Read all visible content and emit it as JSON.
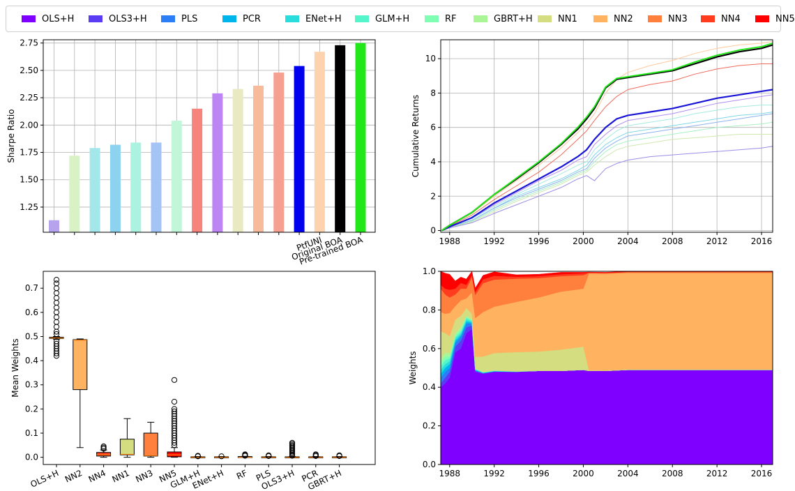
{
  "legend": {
    "items": [
      {
        "label": "OLS+H",
        "color": "#8000ff"
      },
      {
        "label": "OLS3+H",
        "color": "#5a3cf4"
      },
      {
        "label": "PLS",
        "color": "#2c7ef7"
      },
      {
        "label": "PCR",
        "color": "#00b5eb"
      },
      {
        "label": "ENet+H",
        "color": "#2adddd"
      },
      {
        "label": "GLM+H",
        "color": "#54f5ca"
      },
      {
        "label": "RF",
        "color": "#80ffb4"
      },
      {
        "label": "GBRT+H",
        "color": "#aaf596"
      },
      {
        "label": "NN1",
        "color": "#d4dd80"
      },
      {
        "label": "NN2",
        "color": "#ffb360"
      },
      {
        "label": "NN3",
        "color": "#ff7f3c"
      },
      {
        "label": "NN4",
        "color": "#ff3c1e"
      },
      {
        "label": "NN5",
        "color": "#ff0000"
      }
    ]
  },
  "chart_data": [
    {
      "type": "bar",
      "ylabel": "Sharpe Ratio",
      "ylim": [
        1.02,
        2.78
      ],
      "yticks": [
        "1.25",
        "1.50",
        "1.75",
        "2.00",
        "2.25",
        "2.50",
        "2.75"
      ],
      "grid": true,
      "categories": [
        "",
        "",
        "",
        "",
        "",
        "",
        "",
        "",
        "",
        "",
        "",
        "",
        "",
        "PtfUNI",
        "Original BOA",
        "Pre-trained BOA"
      ],
      "values": [
        1.13,
        1.72,
        1.79,
        1.82,
        1.84,
        1.84,
        2.04,
        2.15,
        2.29,
        2.33,
        2.36,
        2.48,
        2.54,
        2.67,
        2.73,
        2.75
      ],
      "colors": [
        "#b5a3ee",
        "#d8f2c5",
        "#a3e7ea",
        "#8dd2ef",
        "#acf2e0",
        "#a3c4f4",
        "#c2f6d8",
        "#f6847d",
        "#bd85f3",
        "#e9eac2",
        "#f7bb9b",
        "#f5a090",
        "#0000ee",
        "#fdd3ad",
        "#000000",
        "#22e81a"
      ]
    },
    {
      "type": "line",
      "ylabel": "Cumulative Returns",
      "xlim": [
        1987.2,
        2017.0
      ],
      "ylim": [
        -0.1,
        11.1
      ],
      "xticks": [
        "1988",
        "1992",
        "1996",
        "2000",
        "2004",
        "2008",
        "2012",
        "2016"
      ],
      "yticks": [
        "0",
        "2",
        "4",
        "6",
        "8",
        "10"
      ],
      "grid": true,
      "x": [
        1987.3,
        1988,
        1990,
        1992,
        1994,
        1996,
        1998,
        1999.5,
        2000.3,
        2001,
        2002,
        2003,
        2004,
        2006,
        2008,
        2010,
        2012,
        2014,
        2016,
        2017
      ],
      "series": [
        {
          "color": "#ffc89c",
          "width": 1,
          "values": [
            0,
            0.3,
            1.0,
            2.0,
            2.9,
            3.8,
            4.8,
            5.7,
            6.2,
            6.8,
            8.0,
            8.8,
            9.2,
            9.6,
            9.9,
            10.3,
            10.6,
            10.8,
            10.9,
            11.0
          ]
        },
        {
          "color": "#f06a5a",
          "width": 1,
          "values": [
            0,
            0.25,
            0.9,
            1.8,
            2.6,
            3.4,
            4.4,
            5.3,
            5.8,
            6.4,
            7.2,
            7.8,
            8.2,
            8.5,
            8.7,
            9.1,
            9.4,
            9.6,
            9.7,
            9.7
          ]
        },
        {
          "color": "#b08cf0",
          "width": 1,
          "values": [
            0,
            0.2,
            0.7,
            1.5,
            2.2,
            2.9,
            3.5,
            4.1,
            4.3,
            5.0,
            5.6,
            6.1,
            6.4,
            6.6,
            6.8,
            7.1,
            7.4,
            7.6,
            7.8,
            7.9
          ]
        },
        {
          "color": "#a3eae0",
          "width": 1,
          "values": [
            0,
            0.2,
            0.7,
            1.4,
            2.1,
            2.7,
            3.3,
            3.8,
            4.0,
            4.7,
            5.3,
            5.8,
            6.1,
            6.3,
            6.5,
            6.8,
            7.0,
            7.2,
            7.3,
            7.3
          ]
        },
        {
          "color": "#7fd7e8",
          "width": 1,
          "values": [
            0,
            0.2,
            0.6,
            1.3,
            2.0,
            2.5,
            3.0,
            3.5,
            3.8,
            4.4,
            5.0,
            5.4,
            5.7,
            5.9,
            6.1,
            6.3,
            6.5,
            6.7,
            6.8,
            6.9
          ]
        },
        {
          "color": "#8cb2ef",
          "width": 1,
          "values": [
            0,
            0.2,
            0.6,
            1.3,
            1.9,
            2.4,
            2.9,
            3.4,
            3.6,
            4.2,
            4.8,
            5.2,
            5.5,
            5.7,
            5.9,
            6.1,
            6.3,
            6.5,
            6.7,
            6.8
          ]
        },
        {
          "color": "#a8f0c4",
          "width": 1,
          "values": [
            0,
            0.18,
            0.55,
            1.2,
            1.8,
            2.3,
            2.8,
            3.3,
            3.5,
            4.0,
            4.6,
            5.0,
            5.2,
            5.4,
            5.6,
            5.8,
            6.0,
            6.1,
            6.2,
            6.3
          ]
        },
        {
          "color": "#cfe8b0",
          "width": 1,
          "values": [
            0,
            0.17,
            0.5,
            1.1,
            1.7,
            2.2,
            2.7,
            3.2,
            3.4,
            3.8,
            4.3,
            4.7,
            4.9,
            5.1,
            5.3,
            5.4,
            5.5,
            5.6,
            5.6,
            5.6
          ]
        },
        {
          "color": "#9a8ce6",
          "width": 1,
          "values": [
            0,
            0.15,
            0.45,
            1.0,
            1.5,
            2.0,
            2.5,
            3.0,
            3.2,
            2.9,
            3.6,
            3.9,
            4.1,
            4.3,
            4.4,
            4.5,
            4.6,
            4.7,
            4.8,
            4.9
          ]
        },
        {
          "color": "#1a14d6",
          "width": 2.2,
          "values": [
            0,
            0.22,
            0.75,
            1.6,
            2.3,
            3.0,
            3.7,
            4.3,
            4.7,
            5.3,
            6.0,
            6.5,
            6.7,
            6.9,
            7.1,
            7.4,
            7.7,
            7.9,
            8.1,
            8.2
          ]
        },
        {
          "color": "#000000",
          "width": 2.2,
          "values": [
            0,
            0.3,
            1.05,
            2.1,
            3.0,
            3.95,
            5.0,
            5.9,
            6.5,
            7.1,
            8.3,
            8.8,
            8.9,
            9.1,
            9.3,
            9.7,
            10.1,
            10.4,
            10.6,
            10.8
          ]
        },
        {
          "color": "#22e81a",
          "width": 2,
          "values": [
            0,
            0.3,
            1.05,
            2.1,
            3.05,
            4.0,
            5.05,
            6.0,
            6.6,
            7.2,
            8.35,
            8.85,
            8.95,
            9.15,
            9.35,
            9.8,
            10.2,
            10.5,
            10.7,
            10.9
          ]
        }
      ]
    },
    {
      "type": "box",
      "ylabel": "Mean Weights",
      "ylim": [
        -0.03,
        0.77
      ],
      "yticks": [
        "0.0",
        "0.1",
        "0.2",
        "0.3",
        "0.4",
        "0.5",
        "0.6",
        "0.7"
      ],
      "categories": [
        "OLS+H",
        "NN2",
        "NN4",
        "NN1",
        "NN3",
        "NN5",
        "GLM+H",
        "ENet+H",
        "RF",
        "PLS",
        "OLS3+H",
        "PCR",
        "GBRT+H"
      ],
      "boxes": [
        {
          "q1": 0.492,
          "median": 0.494,
          "q3": 0.497,
          "whislo": 0.488,
          "whishi": 0.5,
          "fliers": [
            0.42,
            0.43,
            0.44,
            0.45,
            0.46,
            0.47,
            0.48,
            0.51,
            0.52,
            0.54,
            0.56,
            0.58,
            0.6,
            0.62,
            0.64,
            0.66,
            0.68,
            0.7,
            0.72,
            0.735
          ],
          "color": "#8000ff"
        },
        {
          "q1": 0.28,
          "median": 0.485,
          "q3": 0.487,
          "whislo": 0.04,
          "whishi": 0.49,
          "fliers": [],
          "color": "#ffb360"
        },
        {
          "q1": 0.005,
          "median": 0.01,
          "q3": 0.02,
          "whislo": 0.0,
          "whishi": 0.03,
          "fliers": [
            0.035,
            0.04,
            0.045
          ],
          "color": "#ff3c1e"
        },
        {
          "q1": 0.01,
          "median": 0.012,
          "q3": 0.075,
          "whislo": 0.0,
          "whishi": 0.16,
          "fliers": [],
          "color": "#d4dd80"
        },
        {
          "q1": 0.005,
          "median": 0.007,
          "q3": 0.1,
          "whislo": 0.0,
          "whishi": 0.145,
          "fliers": [],
          "color": "#ff7f3c"
        },
        {
          "q1": 0.002,
          "median": 0.01,
          "q3": 0.022,
          "whislo": 0.0,
          "whishi": 0.04,
          "fliers": [
            0.05,
            0.06,
            0.07,
            0.08,
            0.09,
            0.1,
            0.11,
            0.12,
            0.13,
            0.14,
            0.15,
            0.16,
            0.17,
            0.18,
            0.19,
            0.2,
            0.23,
            0.32
          ],
          "color": "#ff0000"
        },
        {
          "q1": 0.0,
          "median": 0.0,
          "q3": 0.002,
          "whislo": 0.0,
          "whishi": 0.003,
          "fliers": [
            0.004,
            0.006
          ],
          "color": "#54f5ca"
        },
        {
          "q1": 0.0,
          "median": 0.0,
          "q3": 0.002,
          "whislo": 0.0,
          "whishi": 0.003,
          "fliers": [
            0.004
          ],
          "color": "#2adddd"
        },
        {
          "q1": 0.0,
          "median": 0.0,
          "q3": 0.003,
          "whislo": 0.0,
          "whishi": 0.004,
          "fliers": [
            0.006,
            0.009,
            0.012
          ],
          "color": "#80ffb4"
        },
        {
          "q1": 0.0,
          "median": 0.0,
          "q3": 0.002,
          "whislo": 0.0,
          "whishi": 0.003,
          "fliers": [
            0.005,
            0.008
          ],
          "color": "#2c7ef7"
        },
        {
          "q1": 0.0,
          "median": 0.0,
          "q3": 0.002,
          "whislo": 0.0,
          "whishi": 0.003,
          "fliers": [
            0.006,
            0.01,
            0.015,
            0.02,
            0.025,
            0.03,
            0.035,
            0.04,
            0.045,
            0.05,
            0.055,
            0.06
          ],
          "color": "#5a3cf4"
        },
        {
          "q1": 0.0,
          "median": 0.0,
          "q3": 0.002,
          "whislo": 0.0,
          "whishi": 0.003,
          "fliers": [
            0.005,
            0.009,
            0.012
          ],
          "color": "#00b5eb"
        },
        {
          "q1": 0.0,
          "median": 0.0,
          "q3": 0.002,
          "whislo": 0.0,
          "whishi": 0.003,
          "fliers": [
            0.005,
            0.008
          ],
          "color": "#aaf596"
        }
      ]
    },
    {
      "type": "area",
      "ylabel": "Weights",
      "xlim": [
        1987.2,
        2017.0
      ],
      "ylim": [
        0.0,
        1.0
      ],
      "xticks": [
        "1988",
        "1992",
        "1996",
        "2000",
        "2004",
        "2008",
        "2012",
        "2016"
      ],
      "yticks": [
        "0.0",
        "0.2",
        "0.4",
        "0.6",
        "0.8",
        "1.0"
      ],
      "x": [
        1987.2,
        1987.6,
        1988.0,
        1988.5,
        1989.0,
        1989.5,
        1990.0,
        1990.3,
        1991.0,
        1992.0,
        1994.0,
        1996.0,
        1998.0,
        2000.0,
        2000.5,
        2002.0,
        2004.0,
        2008.0,
        2012.0,
        2016.0,
        2017.0
      ],
      "series": [
        {
          "name": "OLS+H",
          "color": "#8000ff",
          "values": [
            0.4,
            0.42,
            0.45,
            0.58,
            0.6,
            0.68,
            0.7,
            0.48,
            0.47,
            0.48,
            0.48,
            0.485,
            0.485,
            0.49,
            0.485,
            0.485,
            0.49,
            0.49,
            0.49,
            0.49,
            0.49
          ]
        },
        {
          "name": "OLS3+H",
          "color": "#5a3cf4",
          "values": [
            0.02,
            0.03,
            0.03,
            0.03,
            0.04,
            0.03,
            0.02,
            0.005,
            0.002,
            0.001,
            0.0,
            0.0,
            0.0,
            0.0,
            0.0,
            0.0,
            0.0,
            0.0,
            0.0,
            0.0,
            0.0
          ]
        },
        {
          "name": "PLS",
          "color": "#2c7ef7",
          "values": [
            0.03,
            0.03,
            0.02,
            0.02,
            0.02,
            0.02,
            0.01,
            0.003,
            0.002,
            0.001,
            0.0,
            0.0,
            0.0,
            0.0,
            0.0,
            0.0,
            0.0,
            0.0,
            0.0,
            0.0,
            0.0
          ]
        },
        {
          "name": "PCR",
          "color": "#00b5eb",
          "values": [
            0.02,
            0.02,
            0.02,
            0.01,
            0.01,
            0.01,
            0.005,
            0.002,
            0.001,
            0.001,
            0.0,
            0.0,
            0.0,
            0.0,
            0.0,
            0.0,
            0.0,
            0.0,
            0.0,
            0.0,
            0.0
          ]
        },
        {
          "name": "ENet+H",
          "color": "#2adddd",
          "values": [
            0.02,
            0.02,
            0.015,
            0.01,
            0.01,
            0.01,
            0.005,
            0.002,
            0.001,
            0.001,
            0.001,
            0.0,
            0.0,
            0.0,
            0.0,
            0.0,
            0.0,
            0.0,
            0.0,
            0.0,
            0.0
          ]
        },
        {
          "name": "GLM+H",
          "color": "#54f5ca",
          "values": [
            0.02,
            0.02,
            0.015,
            0.01,
            0.01,
            0.01,
            0.005,
            0.002,
            0.001,
            0.001,
            0.001,
            0.0,
            0.0,
            0.0,
            0.0,
            0.0,
            0.0,
            0.0,
            0.0,
            0.0,
            0.0
          ]
        },
        {
          "name": "RF",
          "color": "#80ffb4",
          "values": [
            0.02,
            0.02,
            0.01,
            0.01,
            0.01,
            0.005,
            0.003,
            0.002,
            0.001,
            0.001,
            0.0,
            0.0,
            0.0,
            0.0,
            0.0,
            0.0,
            0.0,
            0.0,
            0.0,
            0.0,
            0.0
          ]
        },
        {
          "name": "GBRT+H",
          "color": "#aaf596",
          "values": [
            0.02,
            0.02,
            0.015,
            0.01,
            0.01,
            0.005,
            0.003,
            0.002,
            0.001,
            0.001,
            0.0,
            0.0,
            0.0,
            0.0,
            0.0,
            0.0,
            0.0,
            0.0,
            0.0,
            0.0,
            0.0
          ]
        },
        {
          "name": "NN1",
          "color": "#d4dd80",
          "values": [
            0.14,
            0.1,
            0.09,
            0.07,
            0.06,
            0.04,
            0.03,
            0.06,
            0.08,
            0.09,
            0.1,
            0.1,
            0.11,
            0.12,
            0.003,
            0.002,
            0.002,
            0.002,
            0.002,
            0.002,
            0.002
          ]
        },
        {
          "name": "NN2",
          "color": "#ffb360",
          "values": [
            0.1,
            0.1,
            0.12,
            0.07,
            0.08,
            0.05,
            0.11,
            0.2,
            0.23,
            0.24,
            0.26,
            0.28,
            0.3,
            0.3,
            0.5,
            0.5,
            0.5,
            0.5,
            0.5,
            0.5,
            0.5
          ]
        },
        {
          "name": "NN3",
          "color": "#ff7f3c",
          "values": [
            0.12,
            0.1,
            0.08,
            0.06,
            0.06,
            0.05,
            0.08,
            0.12,
            0.15,
            0.14,
            0.12,
            0.1,
            0.08,
            0.07,
            0.004,
            0.004,
            0.004,
            0.004,
            0.004,
            0.004,
            0.004
          ]
        },
        {
          "name": "NN4",
          "color": "#ff3c1e",
          "values": [
            0.02,
            0.03,
            0.04,
            0.03,
            0.03,
            0.02,
            0.01,
            0.015,
            0.02,
            0.02,
            0.01,
            0.01,
            0.01,
            0.01,
            0.002,
            0.002,
            0.002,
            0.002,
            0.002,
            0.002,
            0.002
          ]
        },
        {
          "name": "NN5",
          "color": "#ff0000",
          "values": [
            0.1,
            0.08,
            0.08,
            0.04,
            0.03,
            0.03,
            0.02,
            0.02,
            0.02,
            0.02,
            0.01,
            0.01,
            0.01,
            0.005,
            0.002,
            0.002,
            0.002,
            0.002,
            0.002,
            0.002,
            0.002
          ]
        }
      ]
    }
  ]
}
